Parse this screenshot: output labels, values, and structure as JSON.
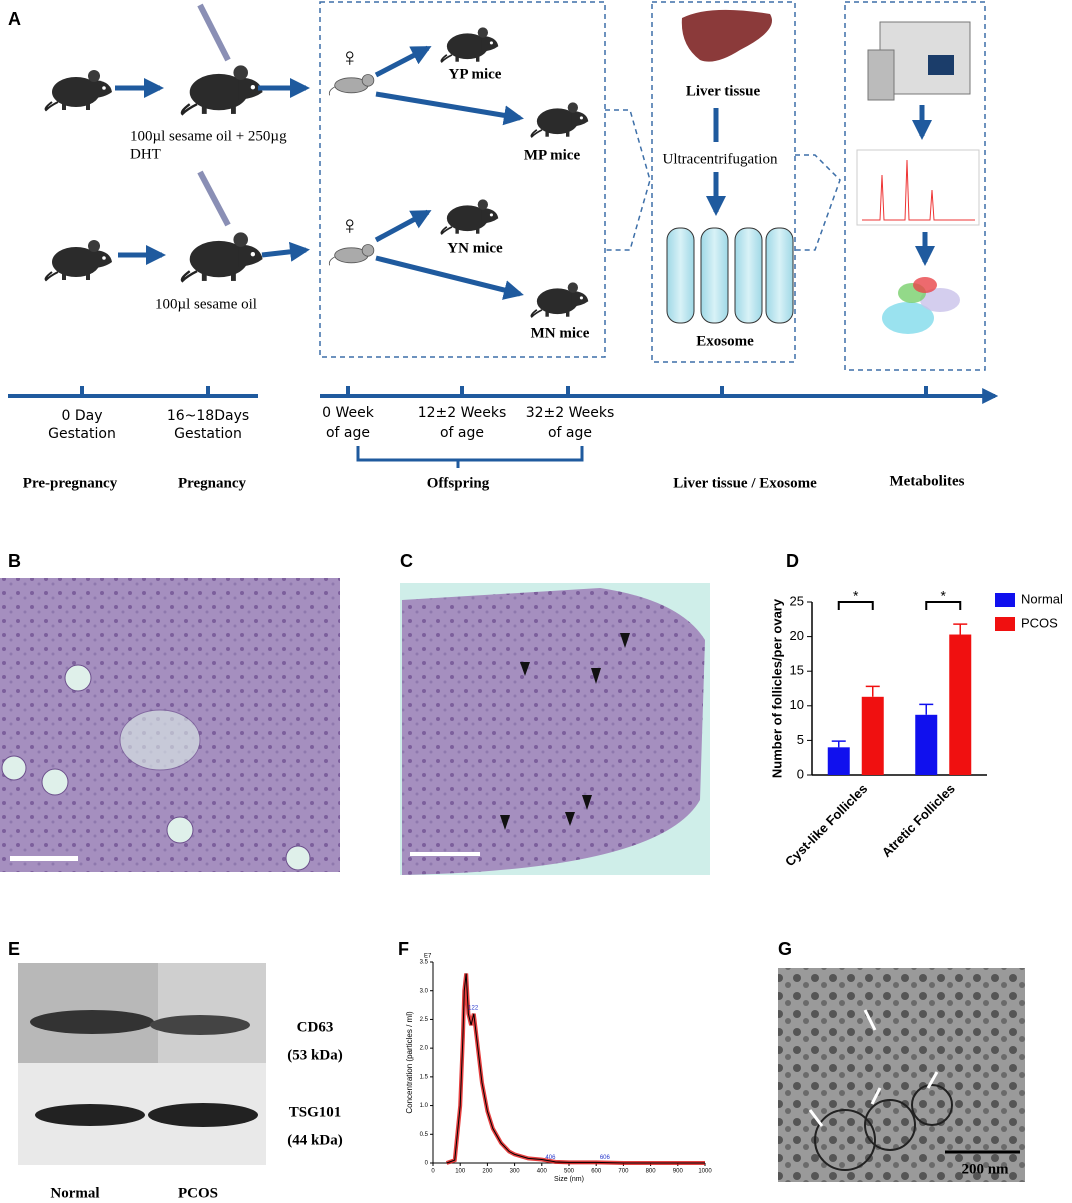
{
  "panel_labels": [
    "A",
    "B",
    "C",
    "D",
    "E",
    "F",
    "G"
  ],
  "diagram": {
    "dht_label_lines": [
      "100µl sesame oil + 250µg",
      "DHT"
    ],
    "oil_label": "100µl sesame oil",
    "groups": [
      "YP mice",
      "MP mice",
      "YN mice",
      "MN mice"
    ],
    "liver": "Liver tissue",
    "ultracentrifugation": "Ultracentrifugation",
    "exosome": "Exosome"
  },
  "timeline": {
    "points": [
      [
        "0 Day",
        "Gestation"
      ],
      [
        "16~18Days",
        "Gestation"
      ],
      [
        "0 Week",
        "of age"
      ],
      [
        "12±2 Weeks",
        "of age"
      ],
      [
        "32±2 Weeks",
        "of age"
      ]
    ],
    "stages": [
      "Pre-pregnancy",
      "Pregnancy",
      "Offspring",
      "Liver tissue / Exosome",
      "Metabolites"
    ]
  },
  "western_blot": {
    "markers": [
      [
        "CD63",
        "(53 kDa)"
      ],
      [
        "TSG101",
        "(44 kDa)"
      ]
    ],
    "lanes": [
      "Normal",
      "PCOS"
    ]
  },
  "tem_scale_bar": "200 nm",
  "chart_data": [
    {
      "type": "bar",
      "ylabel": "Number of follicles/per ovary",
      "categories": [
        "Cyst-like Follicles",
        "Atretic Follicles"
      ],
      "series": [
        {
          "name": "Normal",
          "color": "#1010ee",
          "values": [
            4.0,
            8.7
          ],
          "errors": [
            0.9,
            1.5
          ]
        },
        {
          "name": "PCOS",
          "color": "#f01010",
          "values": [
            11.3,
            20.3
          ],
          "errors": [
            1.5,
            1.5
          ]
        }
      ],
      "annotations": [
        "*",
        "*"
      ],
      "ylim": [
        0,
        25
      ],
      "yticks": [
        0,
        5,
        10,
        15,
        20,
        25
      ],
      "legend": "right"
    },
    {
      "type": "line",
      "xlabel": "Size (nm)",
      "ylabel": "Concentration (particles / ml)",
      "y_multiplier": "E7",
      "x": [
        50,
        80,
        100,
        110,
        115,
        122,
        130,
        140,
        150,
        160,
        170,
        180,
        200,
        220,
        250,
        280,
        300,
        350,
        400,
        450,
        500,
        600,
        700,
        800,
        900,
        1000
      ],
      "series": [
        {
          "color": "#e01010",
          "values": [
            0,
            0.05,
            1.0,
            2.2,
            3.0,
            3.3,
            2.6,
            2.4,
            2.6,
            2.2,
            1.8,
            1.4,
            0.9,
            0.6,
            0.35,
            0.2,
            0.15,
            0.08,
            0.06,
            0.02,
            0.01,
            0.01,
            0,
            0,
            0,
            0
          ]
        }
      ],
      "peak_labels": [
        {
          "x": 122,
          "y": 2.7,
          "label": "122"
        },
        {
          "x": 406,
          "y": 0.1,
          "label": "406"
        },
        {
          "x": 606,
          "y": 0.1,
          "label": "606"
        }
      ],
      "xlim": [
        0,
        1000
      ],
      "xticks": [
        0,
        100,
        200,
        300,
        400,
        500,
        600,
        700,
        800,
        900,
        1000
      ],
      "ylim": [
        0,
        3.5
      ],
      "yticks": [
        0,
        0.5,
        {
          "value": 1,
          "label": "1.0"
        },
        1.5,
        {
          "value": 2,
          "label": "2.0"
        },
        2.5,
        {
          "value": 3,
          "label": "3.0"
        },
        3.5
      ]
    }
  ]
}
